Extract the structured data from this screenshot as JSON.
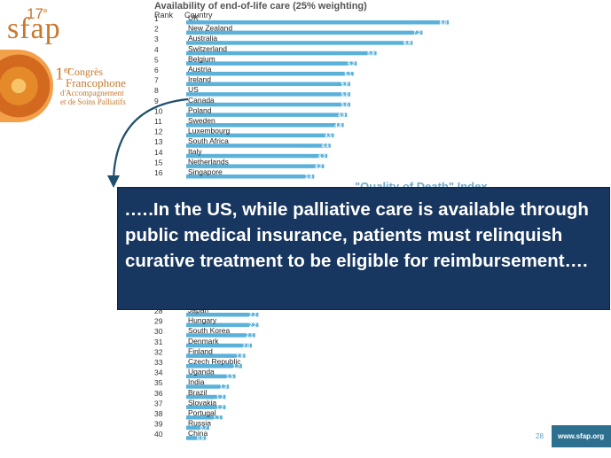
{
  "logo": {
    "edition_number": "17",
    "edition_suffix": "e",
    "brand": "sfap",
    "edition_ordinal": "1",
    "edition_ordinal_suffix": "er",
    "line1": "Congrès",
    "line2": "Francophone",
    "line3": "d'Accompagnement",
    "line4": "et de Soins Palliatifs"
  },
  "faded_note": "\"Quality of Death\" Index",
  "callout": {
    "text": ".….In the US, while palliative care is available through  public medical insurance, patients must relinquish curative treatment to be eligible for reimbursement…."
  },
  "footer": {
    "page_number": "28",
    "site": "www.sfap.org"
  },
  "colors": {
    "bar": "#5ab1da",
    "callout_bg": "#173660",
    "arrow": "#1f4f6e",
    "logo_orange": "#c8782c"
  },
  "chart_data": {
    "type": "bar",
    "orientation": "horizontal",
    "title": "Availability of end-of-life care (25% weighting)",
    "column_headers": [
      "Rank",
      "Country"
    ],
    "top_rows": [
      {
        "rank": 1,
        "country": "UK",
        "value": 8.0
      },
      {
        "rank": 2,
        "country": "New Zealand",
        "value": 7.2
      },
      {
        "rank": 3,
        "country": "Australia",
        "value": 6.9
      },
      {
        "rank": 4,
        "country": "Switzerland",
        "value": 5.8
      },
      {
        "rank": 5,
        "country": "Belgium",
        "value": 5.2
      },
      {
        "rank": 6,
        "country": "Austria",
        "value": 5.1
      },
      {
        "rank": 7,
        "country": "Ireland",
        "value": 5.0
      },
      {
        "rank": 8,
        "country": "US",
        "value": 5.0
      },
      {
        "rank": 9,
        "country": "Canada",
        "value": 5.0
      },
      {
        "rank": 10,
        "country": "Poland",
        "value": 4.9
      },
      {
        "rank": 11,
        "country": "Sweden",
        "value": 4.8
      },
      {
        "rank": 12,
        "country": "Luxembourg",
        "value": 4.5
      },
      {
        "rank": 13,
        "country": "South Africa",
        "value": 4.4
      },
      {
        "rank": 14,
        "country": "Italy",
        "value": 4.3
      },
      {
        "rank": 15,
        "country": "Netherlands",
        "value": 4.2
      },
      {
        "rank": 16,
        "country": "Singapore",
        "value": 3.9
      }
    ],
    "bottom_rows": [
      {
        "rank": 28,
        "country": "Japan",
        "value": 2.2
      },
      {
        "rank": 29,
        "country": "Hungary",
        "value": 2.2
      },
      {
        "rank": 30,
        "country": "South Korea",
        "value": 2.1
      },
      {
        "rank": 31,
        "country": "Denmark",
        "value": 2.0
      },
      {
        "rank": 32,
        "country": "Finland",
        "value": 1.8
      },
      {
        "rank": 33,
        "country": "Czech Republic",
        "value": 1.7
      },
      {
        "rank": 34,
        "country": "Uganda",
        "value": 1.5
      },
      {
        "rank": 35,
        "country": "India",
        "value": 1.3
      },
      {
        "rank": 36,
        "country": "Brazil",
        "value": 1.2
      },
      {
        "rank": 37,
        "country": "Slovakia",
        "value": 1.2
      },
      {
        "rank": 38,
        "country": "Portugal",
        "value": 1.1
      },
      {
        "rank": 39,
        "country": "Russia",
        "value": 0.7
      },
      {
        "rank": 40,
        "country": "China",
        "value": 0.6
      }
    ],
    "x_max": 8.0
  }
}
